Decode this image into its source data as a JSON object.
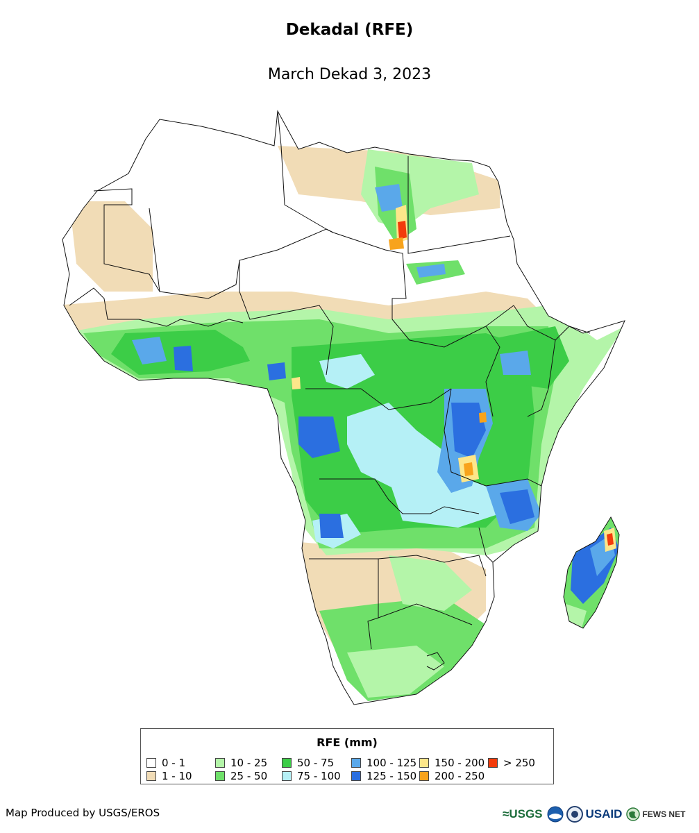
{
  "title": "Dekadal (RFE)",
  "subtitle": "March Dekad 3, 2023",
  "legend": {
    "title": "RFE (mm)",
    "items": [
      {
        "label": "0 - 1",
        "color": "#ffffff"
      },
      {
        "label": "1 - 10",
        "color": "#f1dcb6"
      },
      {
        "label": "10 - 25",
        "color": "#b4f5a9"
      },
      {
        "label": "25 - 50",
        "color": "#6fe06a"
      },
      {
        "label": "50 - 75",
        "color": "#3ccd47"
      },
      {
        "label": "75 - 100",
        "color": "#b5f0f6"
      },
      {
        "label": "100 - 125",
        "color": "#5aa8ea"
      },
      {
        "label": "125 - 150",
        "color": "#2b6fe0"
      },
      {
        "label": "150 - 200",
        "color": "#fde68a"
      },
      {
        "label": "200 - 250",
        "color": "#f8a31c"
      },
      {
        "label": "> 250",
        "color": "#f33b0b"
      }
    ]
  },
  "credit": "Map Produced by USGS/EROS",
  "logos": {
    "usgs": "≈USGS",
    "usaid": "USAID",
    "fewsnet": "FEWS NET"
  }
}
